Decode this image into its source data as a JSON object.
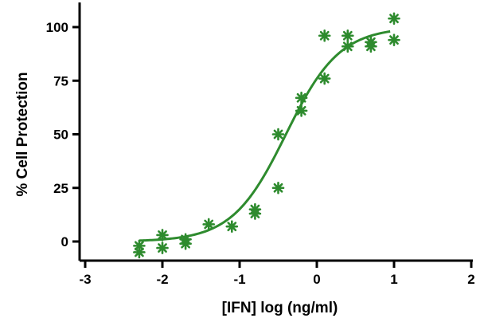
{
  "chart_data": {
    "type": "scatter",
    "title": "",
    "xlabel": "[IFN] log (ng/ml)",
    "ylabel": "% Cell Protection",
    "xlim": [
      -3,
      2
    ],
    "ylim": [
      -10,
      110
    ],
    "x_ticks": [
      "-3",
      "-2",
      "-1",
      "0",
      "1",
      "2"
    ],
    "y_ticks": [
      "0",
      "25",
      "50",
      "75",
      "100"
    ],
    "grid": false,
    "legend": "none",
    "series": [
      {
        "color": "#2e8b2e",
        "marker": "asterisk",
        "points": [
          {
            "x": -2.3,
            "y": -2
          },
          {
            "x": -2.3,
            "y": -5
          },
          {
            "x": -2.0,
            "y": 3
          },
          {
            "x": -2.0,
            "y": -3
          },
          {
            "x": -1.7,
            "y": 1
          },
          {
            "x": -1.7,
            "y": -1
          },
          {
            "x": -1.4,
            "y": 8
          },
          {
            "x": -1.1,
            "y": 7
          },
          {
            "x": -0.8,
            "y": 15
          },
          {
            "x": -0.8,
            "y": 13
          },
          {
            "x": -0.5,
            "y": 50
          },
          {
            "x": -0.5,
            "y": 25
          },
          {
            "x": -0.2,
            "y": 67
          },
          {
            "x": -0.2,
            "y": 61
          },
          {
            "x": 0.1,
            "y": 96
          },
          {
            "x": 0.1,
            "y": 76
          },
          {
            "x": 0.4,
            "y": 96
          },
          {
            "x": 0.4,
            "y": 91
          },
          {
            "x": 0.7,
            "y": 93
          },
          {
            "x": 0.7,
            "y": 91
          },
          {
            "x": 1.0,
            "y": 104
          },
          {
            "x": 1.0,
            "y": 94
          }
        ]
      }
    ],
    "fit_curve": {
      "color": "#2e8b2e",
      "model": "4PL",
      "bottom": 0,
      "top": 100,
      "log_ec50": -0.4,
      "hill_slope": 1.25,
      "x_range": [
        -2.3,
        0.95
      ]
    }
  }
}
